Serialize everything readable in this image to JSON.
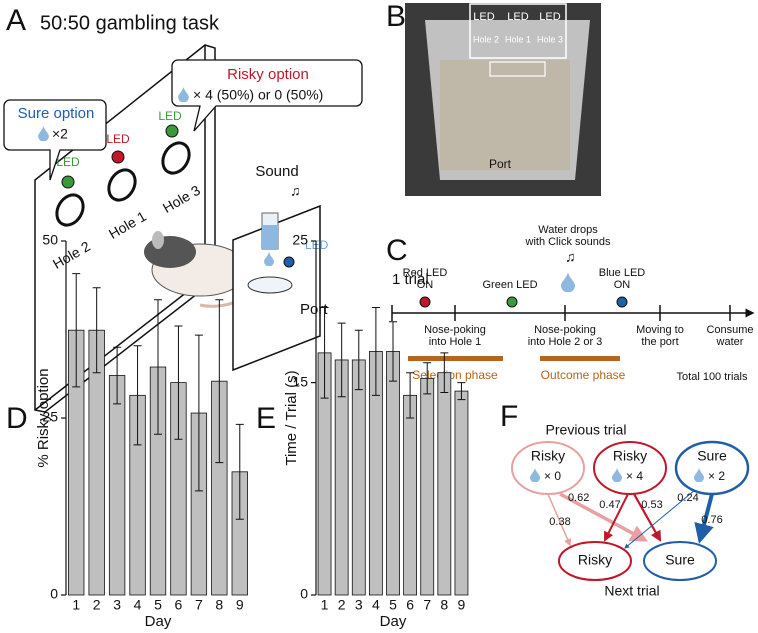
{
  "panel_labels": [
    "A",
    "B",
    "C",
    "D",
    "E",
    "F"
  ],
  "panel_a": {
    "title": "50:50 gambling task",
    "sure_option": "Sure option",
    "sure_amount": "×2",
    "risky_option": "Risky option",
    "risky_amount": "× 4 (50%) or 0 (50%)",
    "led": "LED",
    "holes": [
      "Hole 2",
      "Hole 1",
      "Hole 3"
    ],
    "sound": "Sound",
    "port": "Port"
  },
  "panel_b": {
    "led": "LED",
    "holes": [
      "Hole 2",
      "Hole 1",
      "Hole 3"
    ],
    "port": "Port"
  },
  "panel_c": {
    "trial": "1 trial",
    "events": [
      {
        "line1": "Red LED",
        "line2": "ON"
      },
      {
        "line1": "Green LED"
      },
      {
        "line1": "Water drops",
        "line2": "with Click sounds"
      },
      {
        "line1": "Blue LED",
        "line2": "ON"
      }
    ],
    "steps": [
      {
        "line1": "Nose-poking",
        "line2": "into Hole 1"
      },
      {
        "line1": "Nose-poking",
        "line2": "into Hole 2 or 3"
      },
      {
        "line1": "Moving to",
        "line2": "the port"
      },
      {
        "line1": "Consume",
        "line2": "water"
      }
    ],
    "phases": [
      "Selection phase",
      "Outcome phase"
    ],
    "total": "Total 100 trials"
  },
  "panel_f": {
    "title": "Previous trial",
    "footer": "Next trial",
    "previous": [
      {
        "label": "Risky",
        "amount": "× 0"
      },
      {
        "label": "Risky",
        "amount": "× 4"
      },
      {
        "label": "Sure",
        "amount": "× 2"
      }
    ],
    "next": [
      "Risky",
      "Sure"
    ],
    "probabilities": [
      0.62,
      0.38,
      0.47,
      0.53,
      0.24,
      0.76
    ]
  },
  "chart_data": [
    {
      "type": "bar",
      "ylabel": "% Risky option",
      "xlabel": "Day",
      "categories": [
        "1",
        "2",
        "3",
        "4",
        "5",
        "6",
        "7",
        "8",
        "9"
      ],
      "values": [
        37.4,
        37.4,
        31,
        28.2,
        32.2,
        30,
        25.7,
        30.2,
        17.4
      ],
      "errors": [
        8,
        6,
        4,
        7,
        9.5,
        8,
        11,
        11.5,
        6.7
      ],
      "color": "#bfbfbf",
      "ylim": [
        0,
        50
      ],
      "yticks": [
        0,
        25,
        50
      ]
    },
    {
      "type": "bar",
      "ylabel": "Time / Trial (s)",
      "xlabel": "Day",
      "categories": [
        "1",
        "2",
        "3",
        "4",
        "5",
        "6",
        "7",
        "8",
        "9"
      ],
      "values": [
        17.1,
        16.6,
        16.6,
        17.2,
        17.2,
        14.1,
        15.3,
        15.7,
        14.4
      ],
      "errors": [
        3.2,
        2.6,
        2.1,
        3.1,
        2.1,
        1.6,
        1.1,
        1.4,
        0.6
      ],
      "color": "#bfbfbf",
      "ylim": [
        0,
        25
      ],
      "yticks": [
        0,
        15,
        25
      ]
    }
  ]
}
